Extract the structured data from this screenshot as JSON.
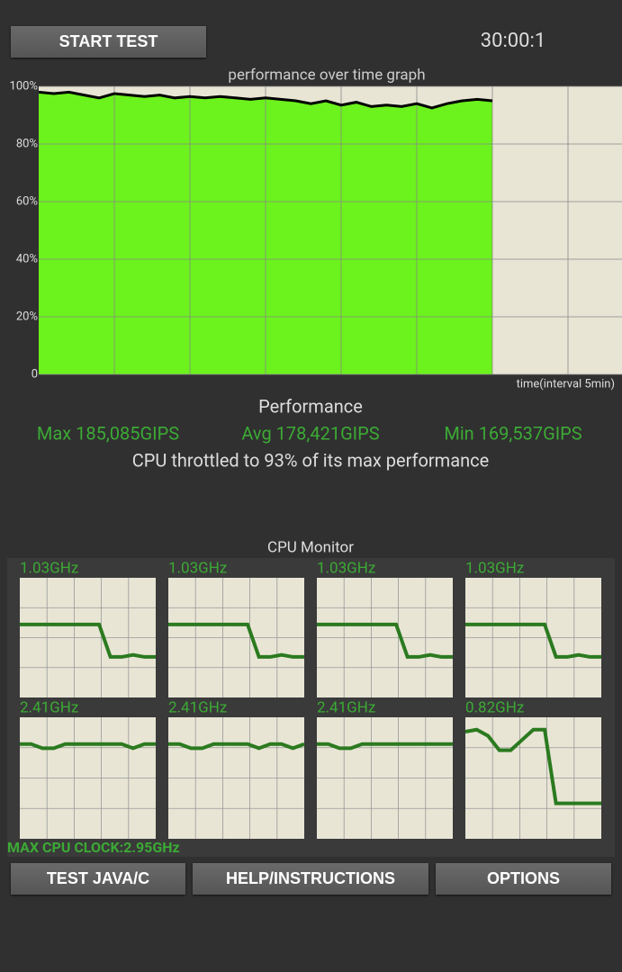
{
  "header": {
    "start_button": "START TEST",
    "timer": "30:00:1"
  },
  "performance": {
    "title": "Performance",
    "max": "Max 185,085GIPS",
    "avg": "Avg 178,421GIPS",
    "min": "Min 169,537GIPS",
    "throttle": "CPU throttled to 93% of its max performance"
  },
  "cpu_monitor": {
    "title": "CPU Monitor",
    "max_clock": "MAX CPU CLOCK:2.95GHz"
  },
  "buttons": [
    "TEST JAVA/C",
    "HELP/INSTRUCTIONS",
    "OPTIONS"
  ],
  "chart_data": [
    {
      "type": "area",
      "title": "performance over time graph",
      "x_label": "time(interval 5min)",
      "x": [
        0,
        1,
        2,
        3,
        4,
        5,
        6,
        7,
        8,
        9,
        10,
        11,
        12,
        13,
        14,
        15,
        16,
        17,
        18,
        19,
        20,
        21,
        22,
        23,
        24,
        25,
        26,
        27,
        28,
        29,
        30
      ],
      "series": [
        {
          "color": "#000000",
          "fill": "#6cf21c",
          "values": [
            98,
            97.5,
            98,
            97,
            96,
            97.5,
            97,
            96.5,
            97,
            96,
            96.5,
            96,
            96.5,
            96,
            95.5,
            96,
            95.5,
            95,
            94,
            95,
            93.5,
            94.5,
            93,
            93.5,
            93,
            94,
            92.5,
            94,
            95,
            95.5,
            95
          ]
        }
      ],
      "xlim": [
        0,
        40
      ],
      "ylim": [
        0,
        100
      ],
      "xticks": [
        5,
        10,
        15,
        20,
        25,
        30,
        35
      ],
      "yticks": [
        0,
        {
          "value": 20,
          "label": "20%"
        },
        {
          "value": 40,
          "label": "40%"
        },
        {
          "value": 60,
          "label": "60%"
        },
        {
          "value": 80,
          "label": "80%"
        },
        {
          "value": 100,
          "label": "100%"
        }
      ],
      "grid": true
    },
    {
      "type": "line",
      "title": "1.03GHz",
      "color": "#2b7a1f",
      "ylim": [
        0,
        2.95
      ],
      "values": [
        1.8,
        1.8,
        1.8,
        1.8,
        1.8,
        1.8,
        1.8,
        1.8,
        1.0,
        1.0,
        1.05,
        1.0,
        1.0
      ]
    },
    {
      "type": "line",
      "title": "1.03GHz",
      "color": "#2b7a1f",
      "ylim": [
        0,
        2.95
      ],
      "values": [
        1.8,
        1.8,
        1.8,
        1.8,
        1.8,
        1.8,
        1.8,
        1.8,
        1.0,
        1.0,
        1.05,
        1.0,
        1.0
      ]
    },
    {
      "type": "line",
      "title": "1.03GHz",
      "color": "#2b7a1f",
      "ylim": [
        0,
        2.95
      ],
      "values": [
        1.8,
        1.8,
        1.8,
        1.8,
        1.8,
        1.8,
        1.8,
        1.8,
        1.0,
        1.0,
        1.05,
        1.0,
        1.0
      ]
    },
    {
      "type": "line",
      "title": "1.03GHz",
      "color": "#2b7a1f",
      "ylim": [
        0,
        2.95
      ],
      "values": [
        1.8,
        1.8,
        1.8,
        1.8,
        1.8,
        1.8,
        1.8,
        1.8,
        1.0,
        1.0,
        1.05,
        1.0,
        1.0
      ]
    },
    {
      "type": "line",
      "title": "2.41GHz",
      "color": "#2b7a1f",
      "ylim": [
        0,
        2.95
      ],
      "values": [
        2.3,
        2.3,
        2.2,
        2.2,
        2.3,
        2.3,
        2.3,
        2.3,
        2.3,
        2.3,
        2.2,
        2.3,
        2.3
      ]
    },
    {
      "type": "line",
      "title": "2.41GHz",
      "color": "#2b7a1f",
      "ylim": [
        0,
        2.95
      ],
      "values": [
        2.3,
        2.3,
        2.2,
        2.2,
        2.3,
        2.3,
        2.3,
        2.3,
        2.2,
        2.3,
        2.3,
        2.2,
        2.3
      ]
    },
    {
      "type": "line",
      "title": "2.41GHz",
      "color": "#2b7a1f",
      "ylim": [
        0,
        2.95
      ],
      "values": [
        2.3,
        2.3,
        2.2,
        2.2,
        2.3,
        2.3,
        2.3,
        2.3,
        2.3,
        2.3,
        2.3,
        2.3,
        2.3
      ]
    },
    {
      "type": "line",
      "title": "0.82GHz",
      "color": "#2b7a1f",
      "ylim": [
        0,
        2.95
      ],
      "values": [
        2.6,
        2.65,
        2.5,
        2.15,
        2.15,
        2.4,
        2.65,
        2.65,
        0.86,
        0.86,
        0.86,
        0.86,
        0.86
      ]
    }
  ]
}
